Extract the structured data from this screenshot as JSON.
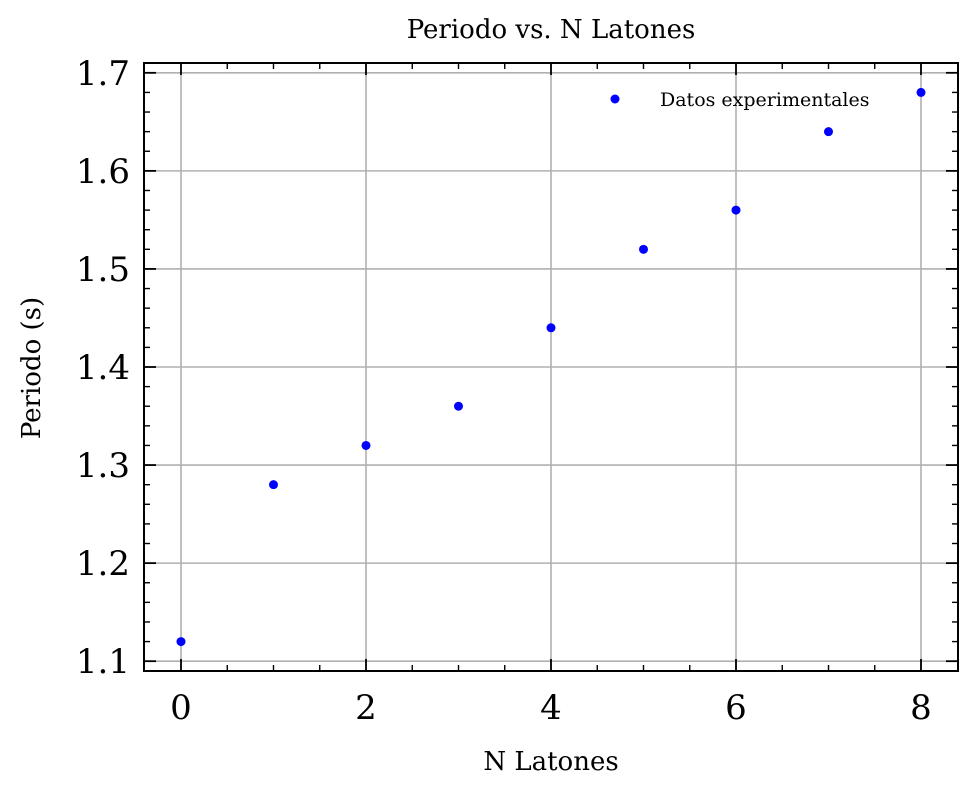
{
  "chart_data": {
    "type": "scatter",
    "title": "Periodo vs. N Latones",
    "xlabel": "N Latones",
    "ylabel": "Periodo (s)",
    "xlim": [
      -0.4,
      8.4
    ],
    "ylim": [
      1.09,
      1.71
    ],
    "x_ticks": [
      0,
      2,
      4,
      6,
      8
    ],
    "x_tick_labels": [
      "0",
      "2",
      "4",
      "6",
      "8"
    ],
    "y_ticks": [
      1.1,
      1.2,
      1.3,
      1.4,
      1.5,
      1.6,
      1.7
    ],
    "y_tick_labels": [
      "1.1",
      "1.2",
      "1.3",
      "1.4",
      "1.5",
      "1.6",
      "1.7"
    ],
    "grid": true,
    "legend_position": "top-right",
    "series": [
      {
        "name": "Datos experimentales",
        "color": "#0000ff",
        "x": [
          0,
          1,
          2,
          3,
          4,
          5,
          6,
          7,
          8
        ],
        "y": [
          1.12,
          1.28,
          1.32,
          1.36,
          1.44,
          1.52,
          1.56,
          1.64,
          1.68
        ]
      }
    ]
  }
}
